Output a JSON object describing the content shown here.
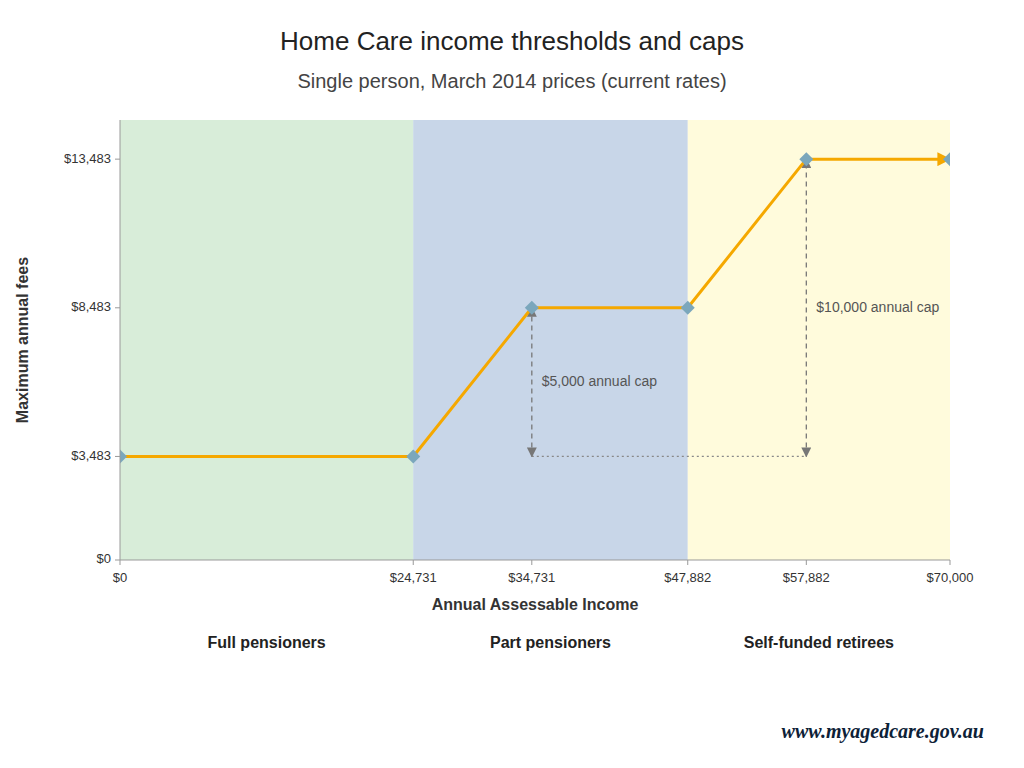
{
  "chart_data": {
    "type": "line",
    "title": "Home Care income thresholds and caps",
    "subtitle": "Single person, March 2014 prices (current rates)",
    "xlabel": "Annual Assessable Income",
    "ylabel": "Maximum annual fees",
    "x": [
      0,
      24731,
      34731,
      47882,
      57882,
      70000
    ],
    "series": [
      {
        "type": "line",
        "color": "#F5A800",
        "values": [
          3483,
          3483,
          8483,
          8483,
          13483,
          13483
        ]
      },
      {
        "type": "scatter",
        "color": "#7BA7BC",
        "marker": "diamond",
        "values": [
          3483,
          3483,
          8483,
          8483,
          13483,
          13483
        ]
      }
    ],
    "xlim": [
      0,
      70000
    ],
    "ylim": [
      0,
      14800
    ],
    "xticks": [
      {
        "value": 0,
        "label": "$0"
      },
      {
        "value": 24731,
        "label": "$24,731"
      },
      {
        "value": 34731,
        "label": "$34,731"
      },
      {
        "value": 47882,
        "label": "$47,882"
      },
      {
        "value": 57882,
        "label": "$57,882"
      },
      {
        "value": 70000,
        "label": "$70,000"
      }
    ],
    "yticks": [
      {
        "value": 0,
        "label": "$0"
      },
      {
        "value": 3483,
        "label": "$3,483"
      },
      {
        "value": 8483,
        "label": "$8,483"
      },
      {
        "value": 13483,
        "label": "$13,483"
      }
    ],
    "grid": false,
    "regions": [
      {
        "x0": 0,
        "x1": 24731,
        "color": "#C8E6C9",
        "label": "Full pensioners"
      },
      {
        "x0": 24731,
        "x1": 47882,
        "color": "#B0C4DE",
        "label": "Part pensioners"
      },
      {
        "x0": 47882,
        "x1": 70000,
        "color": "#FFFACD",
        "label": "Self-funded retirees"
      }
    ],
    "annotations": [
      {
        "text": "$5,000 annual cap",
        "x": 34731,
        "y0": 3483,
        "y1": 8483
      },
      {
        "text": "$10,000 annual cap",
        "x": 57882,
        "y0": 3483,
        "y1": 13483
      }
    ],
    "reference_lines": [
      {
        "y": 3483,
        "x0": 34731,
        "x1": 57882
      }
    ],
    "footer": "www.myagedcare.gov.au"
  }
}
